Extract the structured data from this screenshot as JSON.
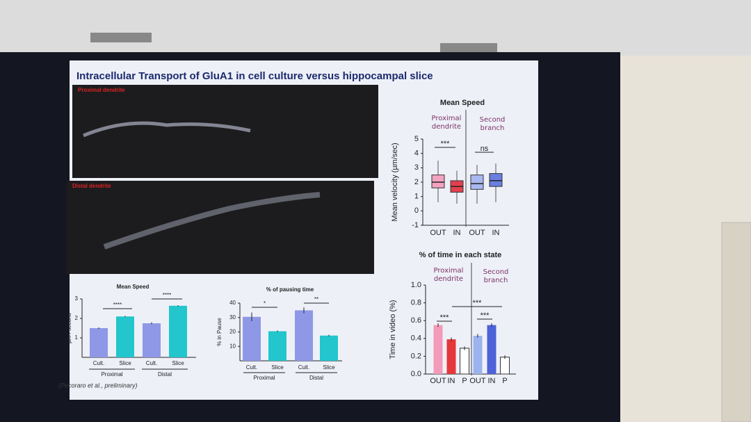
{
  "slide": {
    "title": "Intracellular Transport of GluA1 in cell culture versus hippocampal slice",
    "citation": "(Pecoraro et al., preliminary)",
    "images": [
      {
        "label": "Proximal dendrite"
      },
      {
        "label": "Distal dendrite"
      }
    ]
  },
  "chart_data": [
    {
      "type": "bar",
      "title": "Mean Speed",
      "y_label": "µm / second",
      "categories": [
        "Cult.",
        "Slice",
        "Cult.",
        "Slice"
      ],
      "groups": [
        "Proximal",
        "Distal"
      ],
      "values": [
        1.5,
        2.1,
        1.75,
        2.65
      ],
      "errors": [
        0.04,
        0.03,
        0.05,
        0.03
      ],
      "colors": [
        "#8f98e6",
        "#22c6cc",
        "#8f98e6",
        "#22c6cc"
      ],
      "ylim": [
        0,
        3
      ],
      "yticks": [
        1,
        2,
        3
      ],
      "significance": [
        "****",
        "****"
      ]
    },
    {
      "type": "bar",
      "title": "% of pausing time",
      "y_label": "% in Pause",
      "categories": [
        "Cult.",
        "Slice",
        "Cult.",
        "Slice"
      ],
      "groups": [
        "Proximal",
        "Distal"
      ],
      "values": [
        30.5,
        20.5,
        35,
        17.5
      ],
      "errors": [
        3,
        0.5,
        2,
        0.5
      ],
      "colors": [
        "#8f98e6",
        "#22c6cc",
        "#8f98e6",
        "#22c6cc"
      ],
      "ylim": [
        0,
        40
      ],
      "yticks": [
        10,
        20,
        30,
        40
      ],
      "significance": [
        "*",
        "**"
      ]
    },
    {
      "type": "box",
      "title": "Mean Speed",
      "y_label": "Mean velocity (µm/sec)",
      "categories": [
        "OUT",
        "IN",
        "OUT",
        "IN"
      ],
      "groups": [
        "Proximal dendrite",
        "Second branch"
      ],
      "boxes": [
        {
          "low": 0.6,
          "q1": 1.6,
          "median": 2.0,
          "q3": 2.5,
          "high": 3.5
        },
        {
          "low": 0.5,
          "q1": 1.3,
          "median": 1.7,
          "q3": 2.1,
          "high": 2.8
        },
        {
          "low": 0.5,
          "q1": 1.5,
          "median": 1.9,
          "q3": 2.5,
          "high": 3.2
        },
        {
          "low": 0.6,
          "q1": 1.7,
          "median": 2.1,
          "q3": 2.6,
          "high": 3.3
        }
      ],
      "colors": [
        "#f3a3c0",
        "#e2404f",
        "#a9b8f0",
        "#6b7fe0"
      ],
      "ylim": [
        -1,
        5
      ],
      "yticks": [
        -1,
        0,
        1,
        2,
        3,
        4,
        5
      ],
      "significance": [
        "***",
        "ns"
      ]
    },
    {
      "type": "bar",
      "title": "% of time in each state",
      "y_label": "Time in video (%)",
      "categories": [
        "OUT",
        "IN",
        "P",
        "OUT",
        "IN",
        "P"
      ],
      "groups": [
        "Proximal dendrite",
        "Second branch"
      ],
      "values": [
        0.55,
        0.39,
        0.29,
        0.43,
        0.55,
        0.19
      ],
      "errors": [
        0.02,
        0.02,
        0.02,
        0.02,
        0.02,
        0.02
      ],
      "colors": [
        "#f29ab8",
        "#e5383b",
        "#ffffff",
        "#9bb4ef",
        "#4e63d8",
        "#ffffff"
      ],
      "ylim": [
        0,
        1.0
      ],
      "yticks": [
        {
          "value": 0,
          "label": "0.0"
        },
        0.2,
        0.4,
        0.6,
        0.8,
        {
          "value": 1,
          "label": "1.0"
        }
      ],
      "significance": [
        "***",
        "***",
        "***"
      ]
    }
  ]
}
